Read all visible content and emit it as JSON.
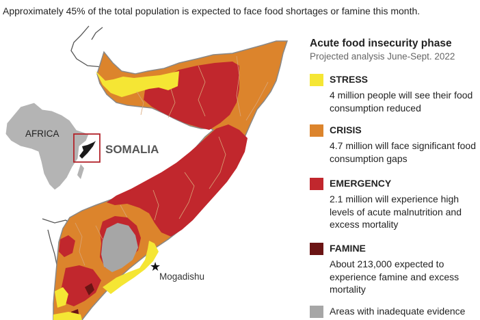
{
  "subtitle": "Approximately 45% of the total population is expected to face food shortages or famine this month.",
  "map_labels": {
    "continent": "AFRICA",
    "country": "SOMALIA",
    "capital": "Mogadishu"
  },
  "legend": {
    "title": "Acute food insecurity phase",
    "subtitle": "Projected analysis June-Sept. 2022",
    "items": [
      {
        "label": "STRESS",
        "description": "4 million people will see their food consumption reduced",
        "color": "#f5e634"
      },
      {
        "label": "CRISIS",
        "description": "4.7 million will face significant food consumption gaps",
        "color": "#dc842c"
      },
      {
        "label": "EMERGENCY",
        "description": "2.1 million will experience high levels of acute malnutrition and excess mortality",
        "color": "#c1272d"
      },
      {
        "label": "FAMINE",
        "description": "About 213,000 expected to experience famine and excess mortality",
        "color": "#6b1414"
      },
      {
        "label": "Areas with inadequate evidence",
        "color": "#a6a6a6"
      }
    ]
  },
  "colors": {
    "africa": "#b4b4b4",
    "border_lines": "#555555",
    "highlight_box": "#b3232b"
  }
}
